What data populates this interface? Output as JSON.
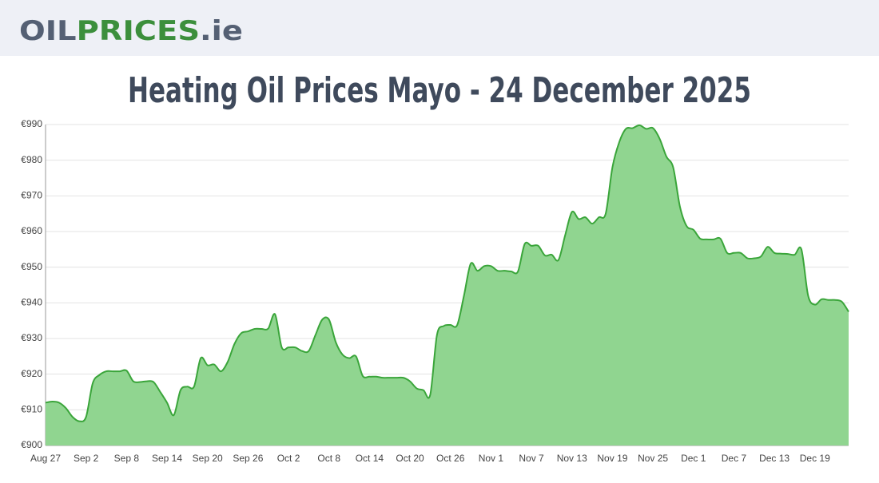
{
  "header": {
    "logo": [
      "OIL",
      "PRICES",
      ".ie"
    ]
  },
  "chart_data": {
    "type": "area",
    "title": "Heating Oil Prices Mayo - 24 December 2025",
    "categories": [
      "Aug 27",
      null,
      null,
      null,
      null,
      null,
      "Sep 2",
      null,
      null,
      null,
      null,
      null,
      "Sep 8",
      null,
      null,
      null,
      null,
      null,
      "Sep 14",
      null,
      null,
      null,
      null,
      null,
      "Sep 20",
      null,
      null,
      null,
      null,
      null,
      "Sep 26",
      null,
      null,
      null,
      null,
      null,
      "Oct 2",
      null,
      null,
      null,
      null,
      null,
      "Oct 8",
      null,
      null,
      null,
      null,
      null,
      "Oct 14",
      null,
      null,
      null,
      null,
      null,
      "Oct 20",
      null,
      null,
      null,
      null,
      null,
      "Oct 26",
      null,
      null,
      null,
      null,
      null,
      "Nov 1",
      null,
      null,
      null,
      null,
      null,
      "Nov 7",
      null,
      null,
      null,
      null,
      null,
      "Nov 13",
      null,
      null,
      null,
      null,
      null,
      "Nov 19",
      null,
      null,
      null,
      null,
      null,
      "Nov 25",
      null,
      null,
      null,
      null,
      null,
      "Dec 1",
      null,
      null,
      null,
      null,
      null,
      "Dec 7",
      null,
      null,
      null,
      null,
      null,
      "Dec 13",
      null,
      null,
      null,
      null,
      null,
      "Dec 19",
      null,
      null,
      null,
      null,
      null
    ],
    "values": [
      912,
      912.3,
      912,
      910.5,
      908,
      906.8,
      908,
      917.5,
      919.8,
      920.8,
      920.8,
      920.8,
      921,
      918,
      917.8,
      918,
      917.8,
      915,
      912,
      908.5,
      915.5,
      916.5,
      916.5,
      924.5,
      922.5,
      922.7,
      920.8,
      923.5,
      928.5,
      931.5,
      932,
      932.7,
      932.7,
      932.8,
      936.8,
      927.5,
      927.5,
      927.5,
      926.5,
      926.5,
      931,
      935.3,
      935.3,
      929,
      925.5,
      924.5,
      925,
      919.5,
      919.3,
      919.3,
      919,
      919,
      919,
      919,
      918,
      916,
      915.5,
      914.2,
      931,
      933.5,
      933.8,
      933.8,
      942,
      951,
      949,
      950.3,
      950.3,
      949,
      949,
      948.8,
      948.8,
      956.5,
      956,
      956,
      953.3,
      953.5,
      952,
      959,
      965.5,
      963.5,
      964,
      962.2,
      964,
      965,
      978,
      985,
      988.8,
      989,
      989.8,
      988.8,
      989,
      986,
      981,
      978,
      967,
      961.5,
      960.5,
      958,
      957.8,
      957.8,
      958,
      954,
      954,
      954,
      952.5,
      952.5,
      953,
      955.7,
      954,
      953.8,
      953.7,
      953.5,
      955,
      942,
      939.5,
      941,
      940.8,
      940.8,
      940.3,
      937.5
    ],
    "color": "#3aa53a",
    "fill": "#90d590",
    "ylim": [
      900,
      990
    ],
    "yticks": [
      {
        "value": 900,
        "label": "€900"
      },
      {
        "value": 910,
        "label": "€910"
      },
      {
        "value": 920,
        "label": "€920"
      },
      {
        "value": 930,
        "label": "€930"
      },
      {
        "value": 940,
        "label": "€940"
      },
      {
        "value": 950,
        "label": "€950"
      },
      {
        "value": 960,
        "label": "€960"
      },
      {
        "value": 970,
        "label": "€970"
      },
      {
        "value": 980,
        "label": "€980"
      },
      {
        "value": 990,
        "label": "€990"
      }
    ],
    "grid": true
  }
}
